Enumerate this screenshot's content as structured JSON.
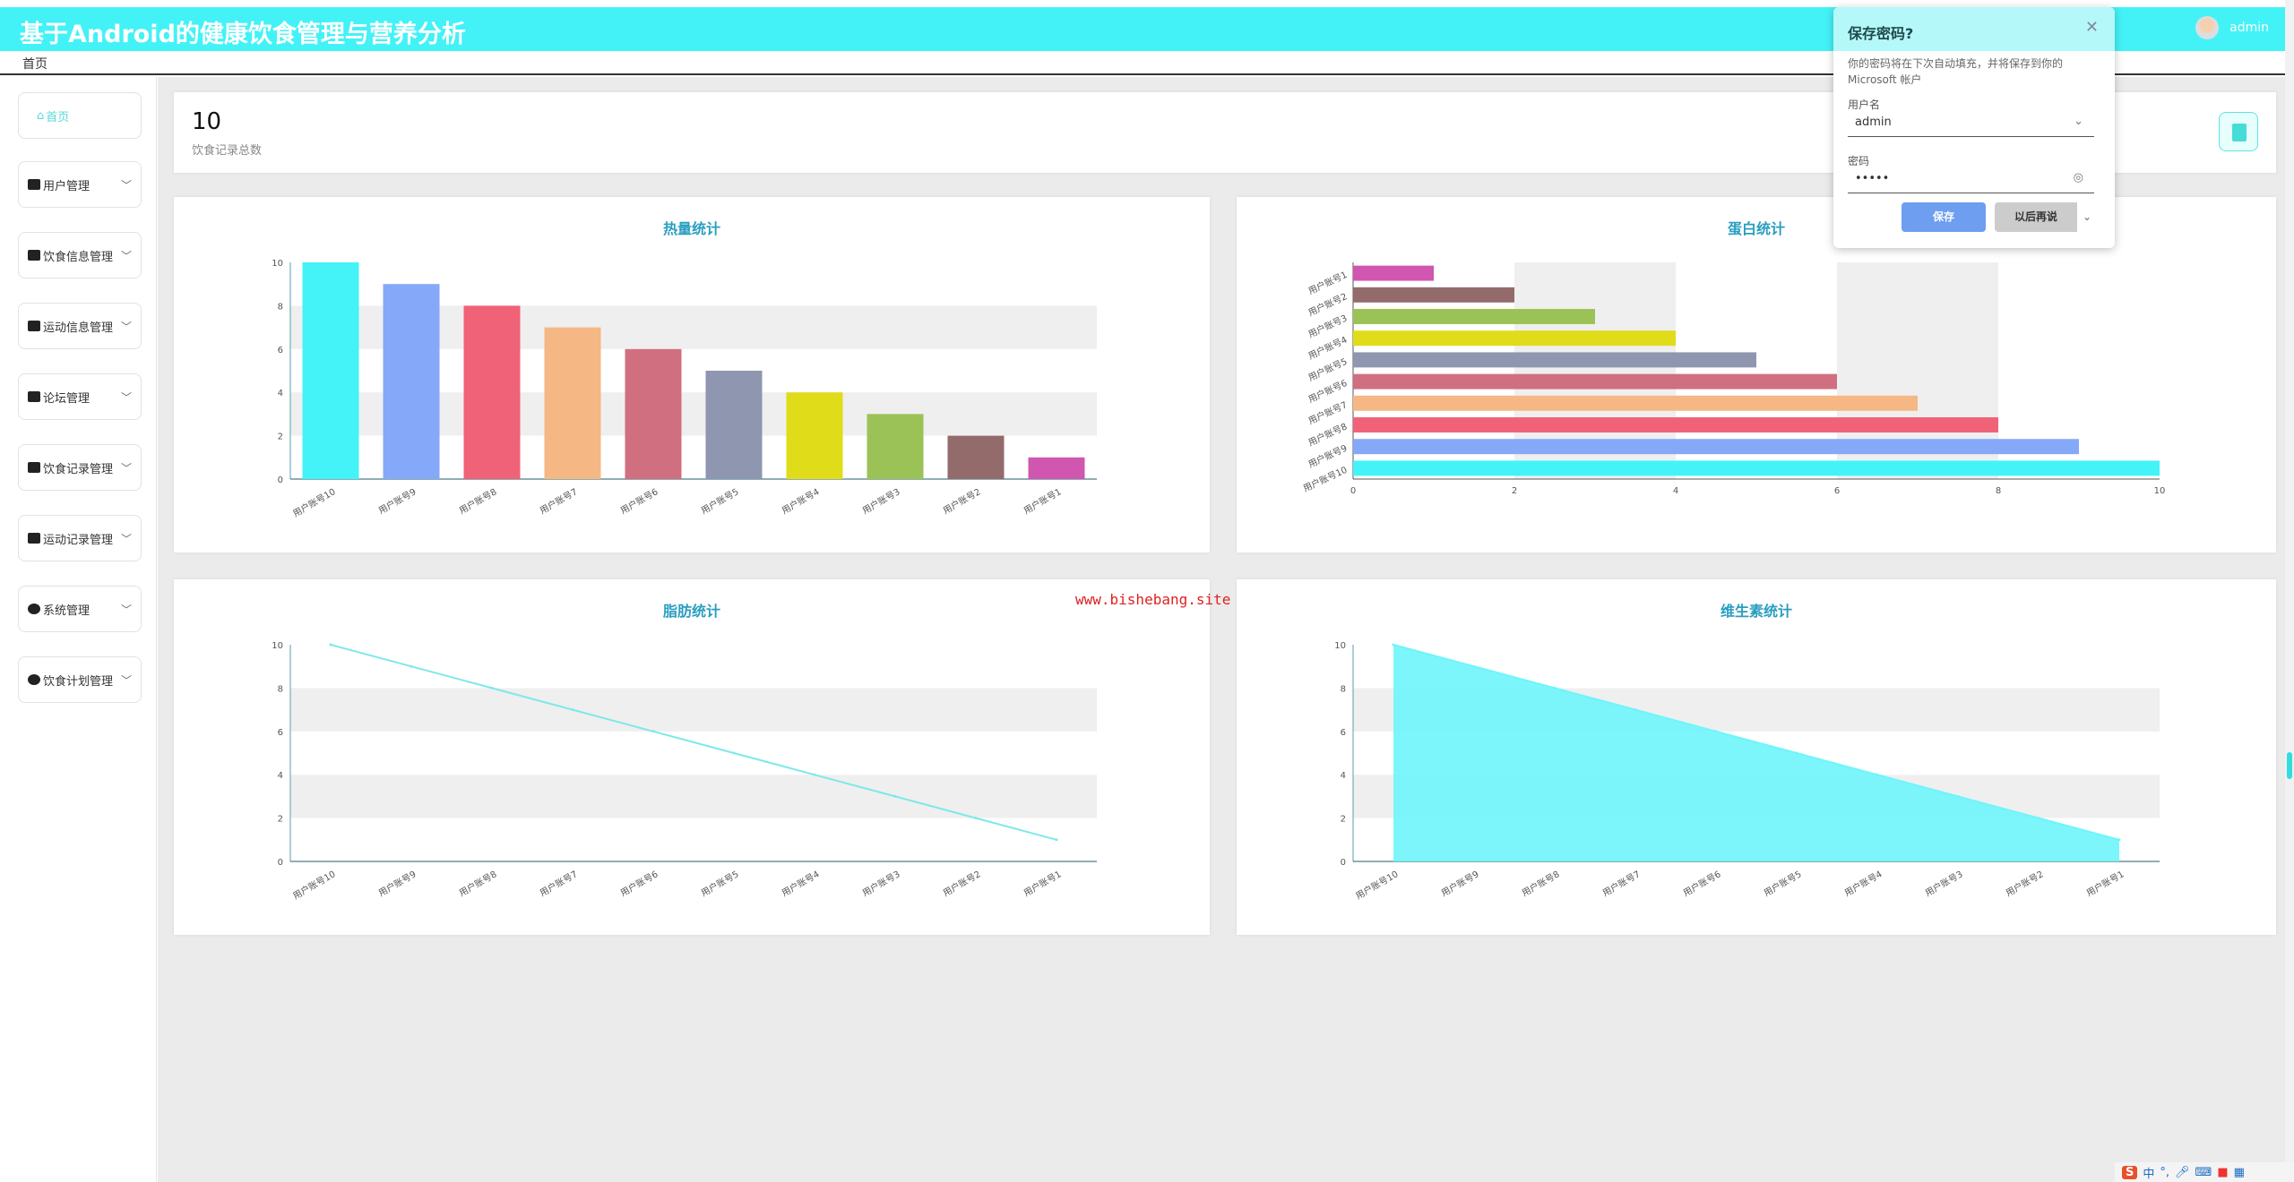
{
  "app": {
    "title": "基于Android的健康饮食管理与营养分析",
    "user": "admin"
  },
  "breadcrumb": "首页",
  "sidebar": {
    "home": "首页",
    "items": [
      {
        "label": "用户管理",
        "icon": "user-icon"
      },
      {
        "label": "饮食信息管理",
        "icon": "camera-icon"
      },
      {
        "label": "运动信息管理",
        "icon": "grid-icon"
      },
      {
        "label": "论坛管理",
        "icon": "server-icon"
      },
      {
        "label": "饮食记录管理",
        "icon": "id-card-icon"
      },
      {
        "label": "运动记录管理",
        "icon": "picture-icon"
      },
      {
        "label": "系统管理",
        "icon": "drop-icon"
      },
      {
        "label": "饮食计划管理",
        "icon": "drop-icon"
      }
    ]
  },
  "stat": {
    "value": "10",
    "label": "饮食记录总数"
  },
  "watermark": "www.bishebang.site",
  "popup": {
    "title": "保存密码?",
    "desc": "你的密码将在下次自动填充，并将保存到你的 Microsoft 帐户",
    "username_label": "用户名",
    "username": "admin",
    "password_label": "密码",
    "password": "•••••",
    "save": "保存",
    "later": "以后再说"
  },
  "tray": {
    "ime": "中",
    "punct": "°,"
  },
  "chart_data": [
    {
      "type": "bar",
      "title": "热量统计",
      "categories": [
        "用户账号10",
        "用户账号9",
        "用户账号8",
        "用户账号7",
        "用户账号6",
        "用户账号5",
        "用户账号4",
        "用户账号3",
        "用户账号2",
        "用户账号1"
      ],
      "values": [
        10,
        9,
        8,
        7,
        6,
        5,
        4,
        3,
        2,
        1
      ],
      "ylim": [
        0,
        10
      ],
      "yticks": [
        "0",
        "2",
        "4",
        "6",
        "8",
        "10"
      ],
      "colors": [
        "#43f3f7",
        "#86a8f8",
        "#f06277",
        "#f5b784",
        "#d06f80",
        "#8e96b0",
        "#e0dc1a",
        "#9bc256",
        "#936b6b",
        "#d056b0"
      ]
    },
    {
      "type": "bar",
      "orientation": "horizontal",
      "title": "蛋白统计",
      "categories": [
        "用户账号1",
        "用户账号2",
        "用户账号3",
        "用户账号4",
        "用户账号5",
        "用户账号6",
        "用户账号7",
        "用户账号8",
        "用户账号9",
        "用户账号10"
      ],
      "values": [
        1,
        2,
        3,
        4,
        5,
        6,
        7,
        8,
        9,
        10
      ],
      "xlim": [
        0,
        10
      ],
      "xticks": [
        "0",
        "2",
        "4",
        "6",
        "8",
        "10"
      ],
      "colors": [
        "#d056b0",
        "#936b6b",
        "#9bc256",
        "#e0dc1a",
        "#8e96b0",
        "#d06f80",
        "#f5b784",
        "#f06277",
        "#86a8f8",
        "#43f3f7"
      ]
    },
    {
      "type": "line",
      "title": "脂肪统计",
      "categories": [
        "用户账号10",
        "用户账号9",
        "用户账号8",
        "用户账号7",
        "用户账号6",
        "用户账号5",
        "用户账号4",
        "用户账号3",
        "用户账号2",
        "用户账号1"
      ],
      "values": [
        10,
        9,
        8,
        7,
        6,
        5,
        4,
        3,
        2,
        1
      ],
      "ylim": [
        0,
        10
      ],
      "yticks": [
        "0",
        "2",
        "4",
        "6",
        "8",
        "10"
      ],
      "colors": [
        "#7ee8ea"
      ]
    },
    {
      "type": "area",
      "title": "维生素统计",
      "categories": [
        "用户账号10",
        "用户账号9",
        "用户账号8",
        "用户账号7",
        "用户账号6",
        "用户账号5",
        "用户账号4",
        "用户账号3",
        "用户账号2",
        "用户账号1"
      ],
      "values": [
        10,
        9,
        8,
        7,
        6,
        5,
        4,
        3,
        2,
        1
      ],
      "ylim": [
        0,
        10
      ],
      "yticks": [
        "0",
        "2",
        "4",
        "6",
        "8",
        "10"
      ],
      "colors": [
        "#6ef5fa"
      ]
    }
  ]
}
